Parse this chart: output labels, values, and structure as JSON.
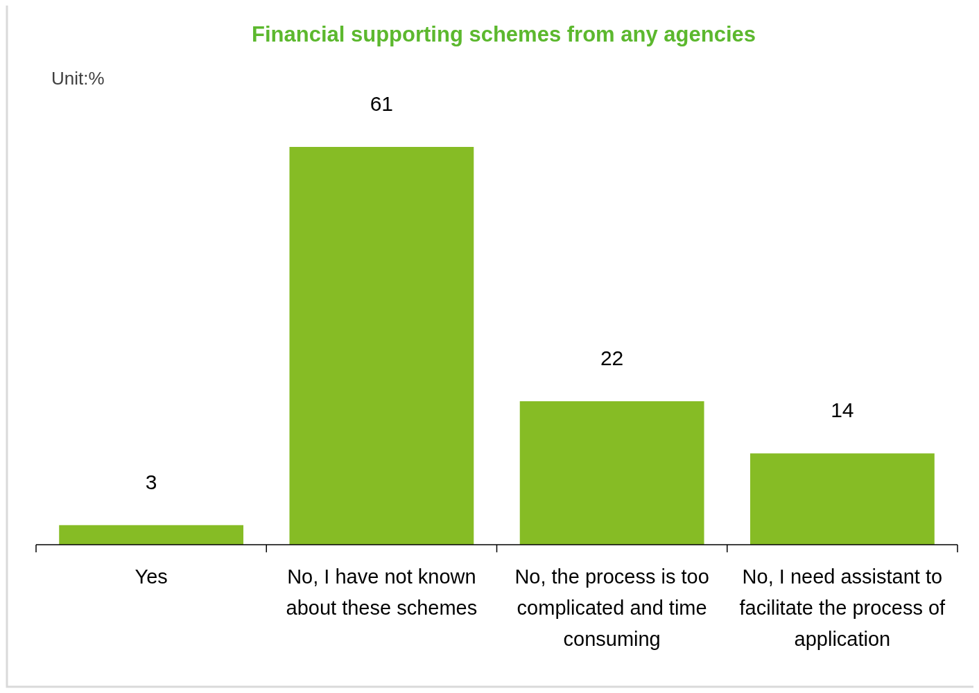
{
  "chart_data": {
    "type": "bar",
    "title": "Financial supporting schemes from any agencies",
    "categories": [
      "Yes",
      "No, I have not known about these schemes",
      "No, the process is too complicated and time consuming",
      "No, I need assistant to facilitate the process of application"
    ],
    "values": [
      3,
      61,
      22,
      14
    ],
    "color": "#86bc25",
    "data_labels": true,
    "annotations": [
      "Unit:%"
    ]
  }
}
